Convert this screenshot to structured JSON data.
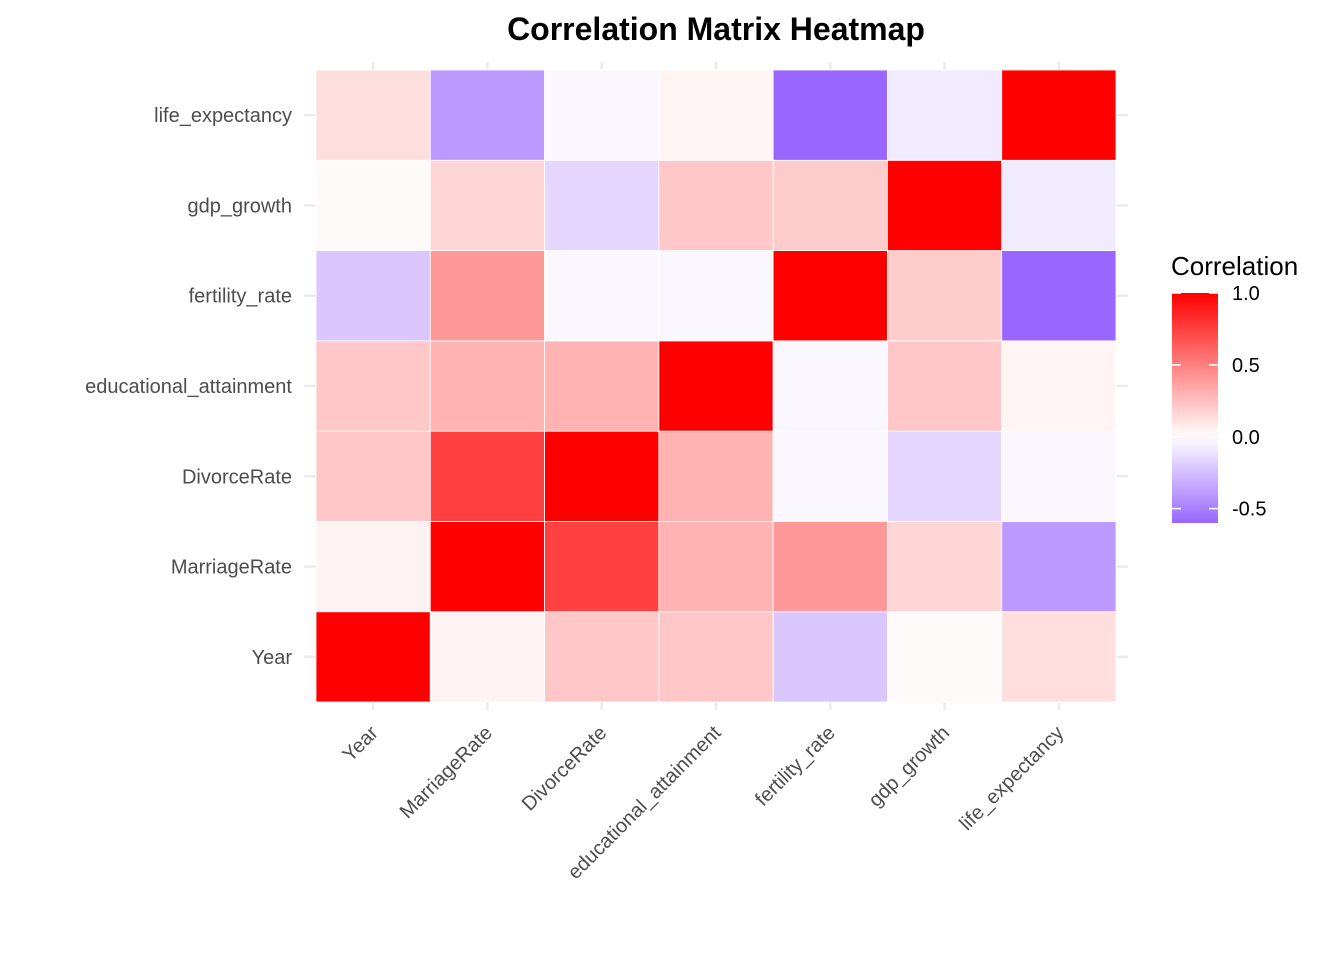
{
  "chart_data": {
    "type": "heatmap",
    "title": "Correlation Matrix Heatmap",
    "xlabel": "",
    "ylabel": "",
    "variables": [
      "Year",
      "MarriageRate",
      "DivorceRate",
      "educational_attainment",
      "fertility_rate",
      "gdp_growth",
      "life_expectancy"
    ],
    "matrix": [
      [
        1.0,
        0.05,
        0.22,
        0.22,
        -0.22,
        0.02,
        0.13
      ],
      [
        0.05,
        1.0,
        0.75,
        0.3,
        0.4,
        0.16,
        -0.4
      ],
      [
        0.22,
        0.75,
        1.0,
        0.3,
        -0.03,
        -0.16,
        -0.03
      ],
      [
        0.22,
        0.3,
        0.3,
        1.0,
        -0.03,
        0.22,
        0.04
      ],
      [
        -0.22,
        0.4,
        -0.03,
        -0.03,
        1.0,
        0.2,
        -0.6
      ],
      [
        0.02,
        0.16,
        -0.16,
        0.22,
        0.2,
        1.0,
        -0.08
      ],
      [
        0.13,
        -0.4,
        -0.03,
        0.04,
        -0.6,
        -0.08,
        1.0
      ]
    ],
    "color_scale": {
      "low": "#9966FF",
      "mid": "#FFFFFF",
      "high": "#FF0000",
      "limits": [
        -0.6,
        1.0
      ]
    },
    "legend": {
      "title": "Correlation",
      "ticks": [
        1.0,
        0.5,
        0.0,
        -0.5
      ],
      "tick_labels": [
        "1.0",
        "0.5",
        "0.0",
        "-0.5"
      ],
      "position": "right"
    },
    "grid": true
  }
}
